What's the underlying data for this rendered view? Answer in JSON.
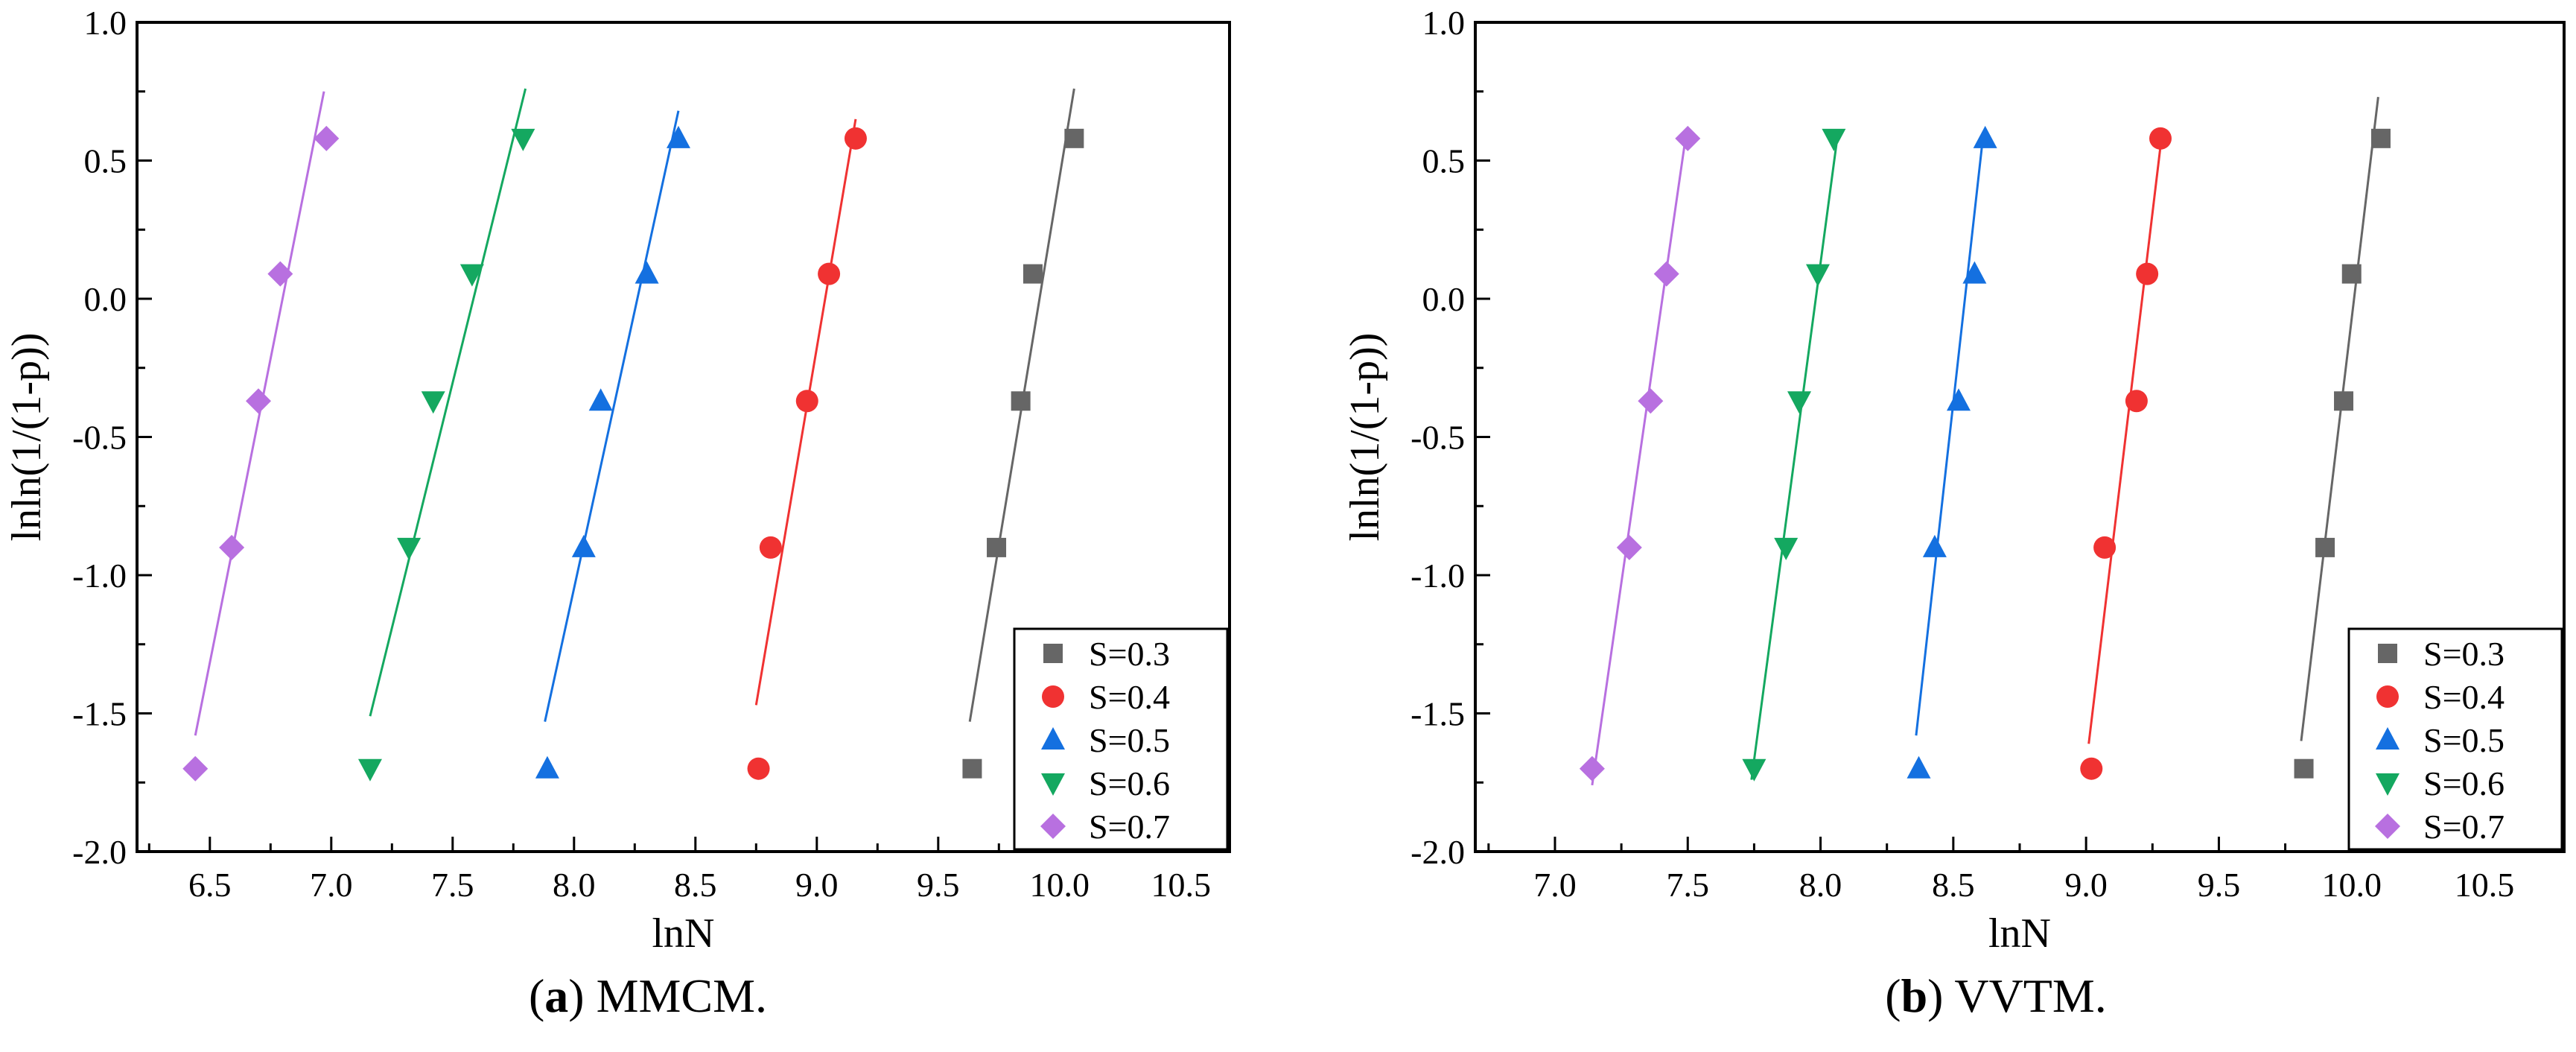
{
  "figure": {
    "captions": [
      {
        "letter": "a",
        "text": " MMCM."
      },
      {
        "letter": "b",
        "text": " VVTM."
      }
    ]
  },
  "chart_data": [
    {
      "type": "scatter",
      "panel": "a",
      "title": "MMCM.",
      "xlabel": "lnN",
      "ylabel": "lnln(1/(1-p))",
      "xlim": [
        6.2,
        10.7
      ],
      "ylim": [
        -2.0,
        1.0
      ],
      "x_ticks": [
        "6.5",
        "7.0",
        "7.5",
        "8.0",
        "8.5",
        "9.0",
        "9.5",
        "10.0",
        "10.5"
      ],
      "y_ticks": [
        "-2.0",
        "-1.5",
        "-1.0",
        "-0.5",
        "0.0",
        "0.5",
        "1.0"
      ],
      "legend_position": "bottom-right",
      "series": [
        {
          "name": "S=0.3",
          "color": "#666666",
          "marker": "square",
          "x": [
            9.64,
            9.74,
            9.84,
            9.89,
            10.06
          ],
          "y": [
            -1.7,
            -0.9,
            -0.37,
            0.09,
            0.58
          ],
          "fit": [
            [
              9.63,
              -1.53
            ],
            [
              10.06,
              0.76
            ]
          ]
        },
        {
          "name": "S=0.4",
          "color": "#f03232",
          "marker": "circle",
          "x": [
            8.76,
            8.81,
            8.96,
            9.05,
            9.16
          ],
          "y": [
            -1.7,
            -0.9,
            -0.37,
            0.09,
            0.58
          ],
          "fit": [
            [
              8.75,
              -1.47
            ],
            [
              9.16,
              0.65
            ]
          ]
        },
        {
          "name": "S=0.5",
          "color": "#1470e0",
          "marker": "triangle-up",
          "x": [
            7.89,
            8.04,
            8.11,
            8.3,
            8.43
          ],
          "y": [
            -1.7,
            -0.9,
            -0.37,
            0.09,
            0.58
          ],
          "fit": [
            [
              7.88,
              -1.53
            ],
            [
              8.43,
              0.68
            ]
          ]
        },
        {
          "name": "S=0.6",
          "color": "#14a860",
          "marker": "triangle-down",
          "x": [
            7.16,
            7.32,
            7.42,
            7.58,
            7.79
          ],
          "y": [
            -1.7,
            -0.9,
            -0.37,
            0.09,
            0.58
          ],
          "fit": [
            [
              7.16,
              -1.51
            ],
            [
              7.8,
              0.76
            ]
          ]
        },
        {
          "name": "S=0.7",
          "color": "#b870e0",
          "marker": "diamond",
          "x": [
            6.44,
            6.59,
            6.7,
            6.79,
            6.98
          ],
          "y": [
            -1.7,
            -0.9,
            -0.37,
            0.09,
            0.58
          ],
          "fit": [
            [
              6.44,
              -1.58
            ],
            [
              6.97,
              0.75
            ]
          ]
        }
      ]
    },
    {
      "type": "scatter",
      "panel": "b",
      "title": "VVTM.",
      "xlabel": "lnN",
      "ylabel": "lnln(1/(1-p))",
      "xlim": [
        6.7,
        10.8
      ],
      "ylim": [
        -2.0,
        1.0
      ],
      "x_ticks": [
        "7.0",
        "7.5",
        "8.0",
        "8.5",
        "9.0",
        "9.5",
        "10.0",
        "10.5"
      ],
      "y_ticks": [
        "-2.0",
        "-1.5",
        "-1.0",
        "-0.5",
        "0.0",
        "0.5",
        "1.0"
      ],
      "legend_position": "bottom-right",
      "series": [
        {
          "name": "S=0.3",
          "color": "#666666",
          "marker": "square",
          "x": [
            9.82,
            9.9,
            9.97,
            10.0,
            10.11
          ],
          "y": [
            -1.7,
            -0.9,
            -0.37,
            0.09,
            0.58
          ],
          "fit": [
            [
              9.81,
              -1.6
            ],
            [
              10.1,
              0.73
            ]
          ]
        },
        {
          "name": "S=0.4",
          "color": "#f03232",
          "marker": "circle",
          "x": [
            9.02,
            9.07,
            9.19,
            9.23,
            9.28
          ],
          "y": [
            -1.7,
            -0.9,
            -0.37,
            0.09,
            0.58
          ],
          "fit": [
            [
              9.01,
              -1.61
            ],
            [
              9.28,
              0.55
            ]
          ]
        },
        {
          "name": "S=0.5",
          "color": "#1470e0",
          "marker": "triangle-up",
          "x": [
            8.37,
            8.43,
            8.52,
            8.58,
            8.62
          ],
          "y": [
            -1.7,
            -0.9,
            -0.37,
            0.09,
            0.58
          ],
          "fit": [
            [
              8.36,
              -1.58
            ],
            [
              8.61,
              0.57
            ]
          ]
        },
        {
          "name": "S=0.6",
          "color": "#14a860",
          "marker": "triangle-down",
          "x": [
            7.75,
            7.87,
            7.92,
            7.99,
            8.05
          ],
          "y": [
            -1.7,
            -0.9,
            -0.37,
            0.09,
            0.58
          ],
          "fit": [
            [
              7.74,
              -1.74
            ],
            [
              8.06,
              0.56
            ]
          ]
        },
        {
          "name": "S=0.7",
          "color": "#b870e0",
          "marker": "diamond",
          "x": [
            7.14,
            7.28,
            7.36,
            7.42,
            7.5
          ],
          "y": [
            -1.7,
            -0.9,
            -0.37,
            0.09,
            0.58
          ],
          "fit": [
            [
              7.14,
              -1.76
            ],
            [
              7.49,
              0.57
            ]
          ]
        }
      ]
    }
  ]
}
